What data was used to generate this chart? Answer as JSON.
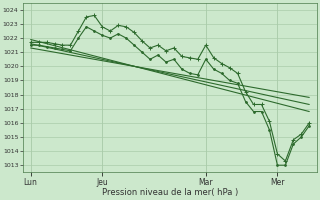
{
  "bg_color": "#cce8cc",
  "grid_color": "#aaccaa",
  "line_color": "#2d6a2d",
  "ylabel_ticks": [
    1013,
    1014,
    1015,
    1016,
    1017,
    1018,
    1019,
    1020,
    1021,
    1022,
    1023,
    1024
  ],
  "ylim": [
    1012.5,
    1024.5
  ],
  "xlabel": "Pression niveau de la mer( hPa )",
  "xtick_labels": [
    "Lun",
    "Jeu",
    "Mar",
    "Mer"
  ],
  "xtick_positions": [
    0,
    9,
    22,
    31
  ],
  "xlim": [
    -1,
    36
  ],
  "series1_x": [
    0,
    1,
    2,
    3,
    4,
    5,
    6,
    7,
    8,
    9,
    10,
    11,
    12,
    13,
    14,
    15,
    16,
    17,
    18,
    19,
    20,
    21,
    22,
    23,
    24,
    25,
    26,
    27,
    28,
    29,
    30,
    31,
    32,
    33,
    34,
    35
  ],
  "series1_y": [
    1021.7,
    1021.7,
    1021.7,
    1021.6,
    1021.5,
    1021.5,
    1022.5,
    1023.5,
    1023.6,
    1022.8,
    1022.5,
    1022.9,
    1022.8,
    1022.4,
    1021.8,
    1021.3,
    1021.5,
    1021.1,
    1021.3,
    1020.7,
    1020.6,
    1020.5,
    1021.5,
    1020.6,
    1020.2,
    1019.9,
    1019.5,
    1018.2,
    1017.3,
    1017.3,
    1016.1,
    1013.8,
    1013.3,
    1014.8,
    1015.2,
    1016.0
  ],
  "series2_x": [
    0,
    1,
    2,
    3,
    4,
    5,
    6,
    7,
    8,
    9,
    10,
    11,
    12,
    13,
    14,
    15,
    16,
    17,
    18,
    19,
    20,
    21,
    22,
    23,
    24,
    25,
    26,
    27,
    28,
    29,
    30,
    31,
    32,
    33,
    34,
    35
  ],
  "series2_y": [
    1021.5,
    1021.5,
    1021.4,
    1021.3,
    1021.2,
    1021.1,
    1022.0,
    1022.8,
    1022.5,
    1022.2,
    1022.0,
    1022.3,
    1022.0,
    1021.5,
    1021.0,
    1020.5,
    1020.8,
    1020.3,
    1020.5,
    1019.8,
    1019.5,
    1019.4,
    1020.5,
    1019.8,
    1019.5,
    1019.0,
    1018.8,
    1017.5,
    1016.8,
    1016.8,
    1015.5,
    1013.0,
    1013.0,
    1014.5,
    1015.0,
    1015.8
  ],
  "trend1_x": [
    0,
    35
  ],
  "trend1_y": [
    1021.9,
    1016.8
  ],
  "trend2_x": [
    0,
    35
  ],
  "trend2_y": [
    1021.6,
    1017.3
  ],
  "trend3_x": [
    0,
    35
  ],
  "trend3_y": [
    1021.3,
    1017.8
  ]
}
